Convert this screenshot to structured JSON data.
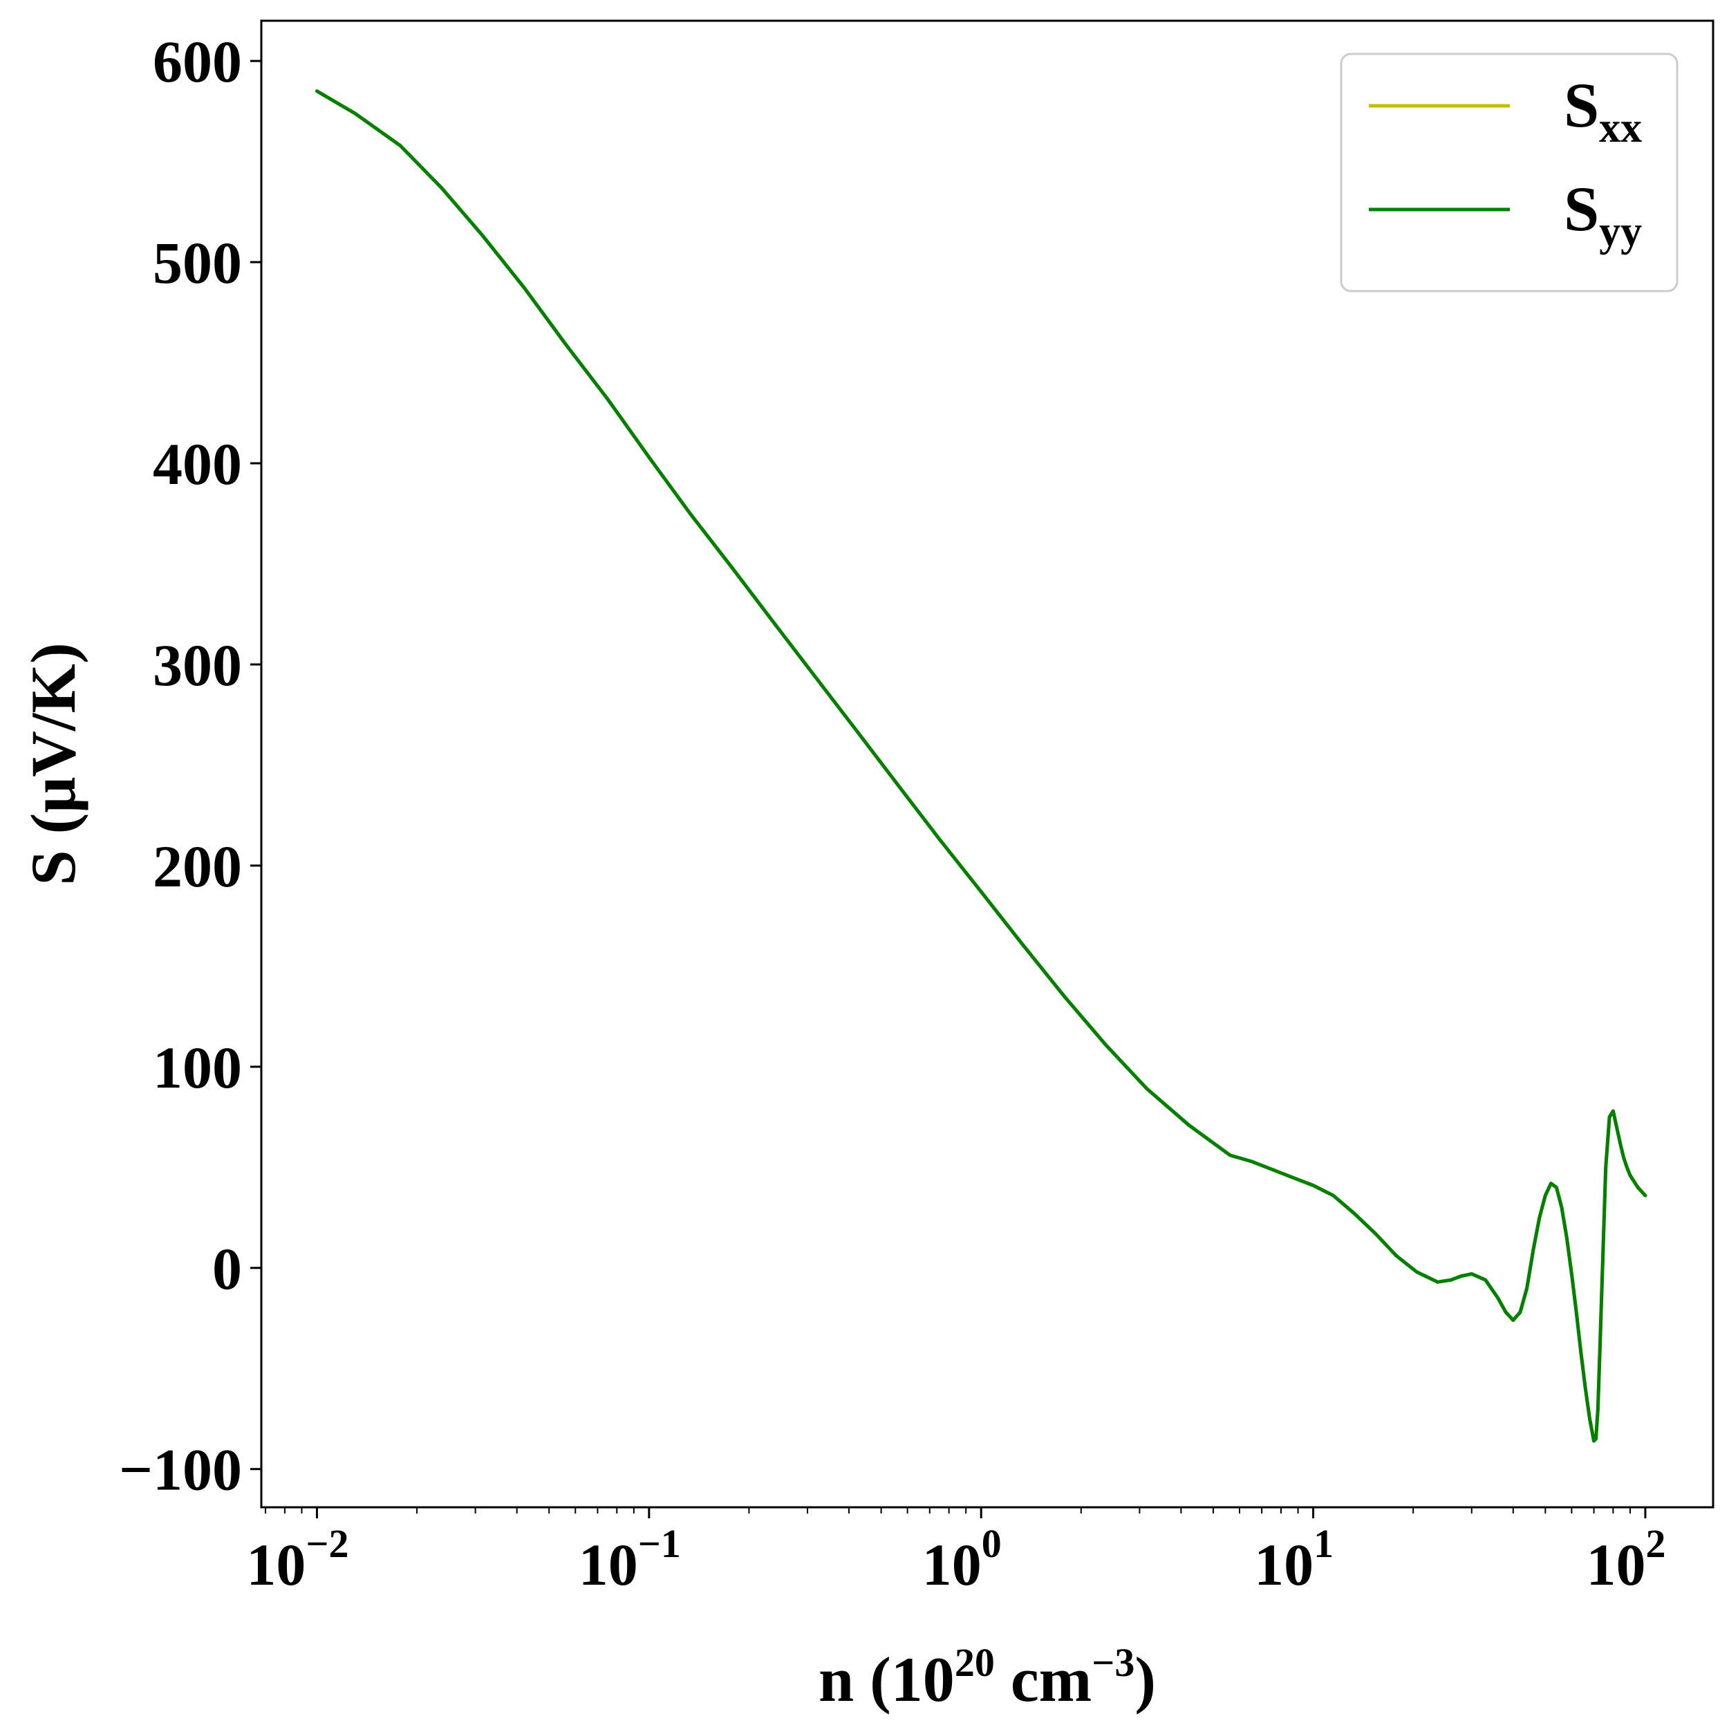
{
  "chart_data": {
    "type": "line",
    "xscale": "log",
    "xlim": [
      0.0068,
      160
    ],
    "ylim": [
      -119,
      620
    ],
    "xlabel": {
      "prefix": "n (10",
      "sup1": "20",
      "middle": " cm",
      "sup2": "−3",
      "suffix": ")"
    },
    "ylabel": "S (μV/K)",
    "x_ticks": [
      {
        "value": 0.01,
        "base": "10",
        "exp": "−2"
      },
      {
        "value": 0.1,
        "base": "10",
        "exp": "−1"
      },
      {
        "value": 1,
        "base": "10",
        "exp": "0"
      },
      {
        "value": 10,
        "base": "10",
        "exp": "1"
      },
      {
        "value": 100,
        "base": "10",
        "exp": "2"
      }
    ],
    "y_ticks": [
      {
        "value": -100,
        "label": "−100"
      },
      {
        "value": 0,
        "label": "0"
      },
      {
        "value": 100,
        "label": "100"
      },
      {
        "value": 200,
        "label": "200"
      },
      {
        "value": 300,
        "label": "300"
      },
      {
        "value": 400,
        "label": "400"
      },
      {
        "value": 500,
        "label": "500"
      },
      {
        "value": 600,
        "label": "600"
      }
    ],
    "grid": false,
    "legend_position": "top-right",
    "series": [
      {
        "name": {
          "main": "S",
          "sub": "xx"
        },
        "color": "#bfbf00",
        "x": [
          0.01,
          0.013,
          0.0178,
          0.0237,
          0.0316,
          0.0422,
          0.0562,
          0.075,
          0.1,
          0.133,
          0.178,
          0.237,
          0.316,
          0.422,
          0.562,
          0.75,
          1,
          1.33,
          1.78,
          2.37,
          3.16,
          4.22,
          5.62,
          6.5,
          7.5,
          8.66,
          10,
          11.5,
          13.3,
          15.4,
          17.8,
          20.5,
          23.7,
          26,
          28,
          30,
          33,
          36,
          38,
          40,
          42,
          44,
          46,
          48,
          50,
          52,
          54,
          56,
          58,
          60,
          62,
          64,
          66,
          68,
          70,
          71,
          72,
          73,
          75,
          76,
          78,
          80,
          82,
          84,
          86,
          88,
          90,
          95,
          100
        ],
        "y": [
          585,
          574,
          558,
          537,
          513,
          487,
          459,
          432,
          403,
          375,
          348,
          321,
          294,
          267,
          240,
          213,
          187,
          161,
          135,
          111,
          89,
          71,
          56,
          53,
          49,
          45,
          41,
          36,
          27,
          17,
          6,
          -2,
          -7,
          -6,
          -4,
          -3,
          -6,
          -15,
          -22,
          -26,
          -22,
          -10,
          9,
          25,
          36,
          42,
          40,
          30,
          15,
          -3,
          -22,
          -42,
          -60,
          -75,
          -86,
          -85,
          -70,
          -40,
          20,
          50,
          75,
          78,
          70,
          62,
          55,
          50,
          46,
          40,
          36
        ]
      },
      {
        "name": {
          "main": "S",
          "sub": "yy"
        },
        "color": "#008000",
        "x": [
          0.01,
          0.013,
          0.0178,
          0.0237,
          0.0316,
          0.0422,
          0.0562,
          0.075,
          0.1,
          0.133,
          0.178,
          0.237,
          0.316,
          0.422,
          0.562,
          0.75,
          1,
          1.33,
          1.78,
          2.37,
          3.16,
          4.22,
          5.62,
          6.5,
          7.5,
          8.66,
          10,
          11.5,
          13.3,
          15.4,
          17.8,
          20.5,
          23.7,
          26,
          28,
          30,
          33,
          36,
          38,
          40,
          42,
          44,
          46,
          48,
          50,
          52,
          54,
          56,
          58,
          60,
          62,
          64,
          66,
          68,
          70,
          71,
          72,
          73,
          75,
          76,
          78,
          80,
          82,
          84,
          86,
          88,
          90,
          95,
          100
        ],
        "y": [
          585,
          574,
          558,
          537,
          513,
          487,
          459,
          432,
          403,
          375,
          348,
          321,
          294,
          267,
          240,
          213,
          187,
          161,
          135,
          111,
          89,
          71,
          56,
          53,
          49,
          45,
          41,
          36,
          27,
          17,
          6,
          -2,
          -7,
          -6,
          -4,
          -3,
          -6,
          -15,
          -22,
          -26,
          -22,
          -10,
          9,
          25,
          36,
          42,
          40,
          30,
          15,
          -3,
          -22,
          -42,
          -60,
          -75,
          -86,
          -85,
          -70,
          -40,
          20,
          50,
          75,
          78,
          70,
          62,
          55,
          50,
          46,
          40,
          36
        ]
      }
    ]
  }
}
